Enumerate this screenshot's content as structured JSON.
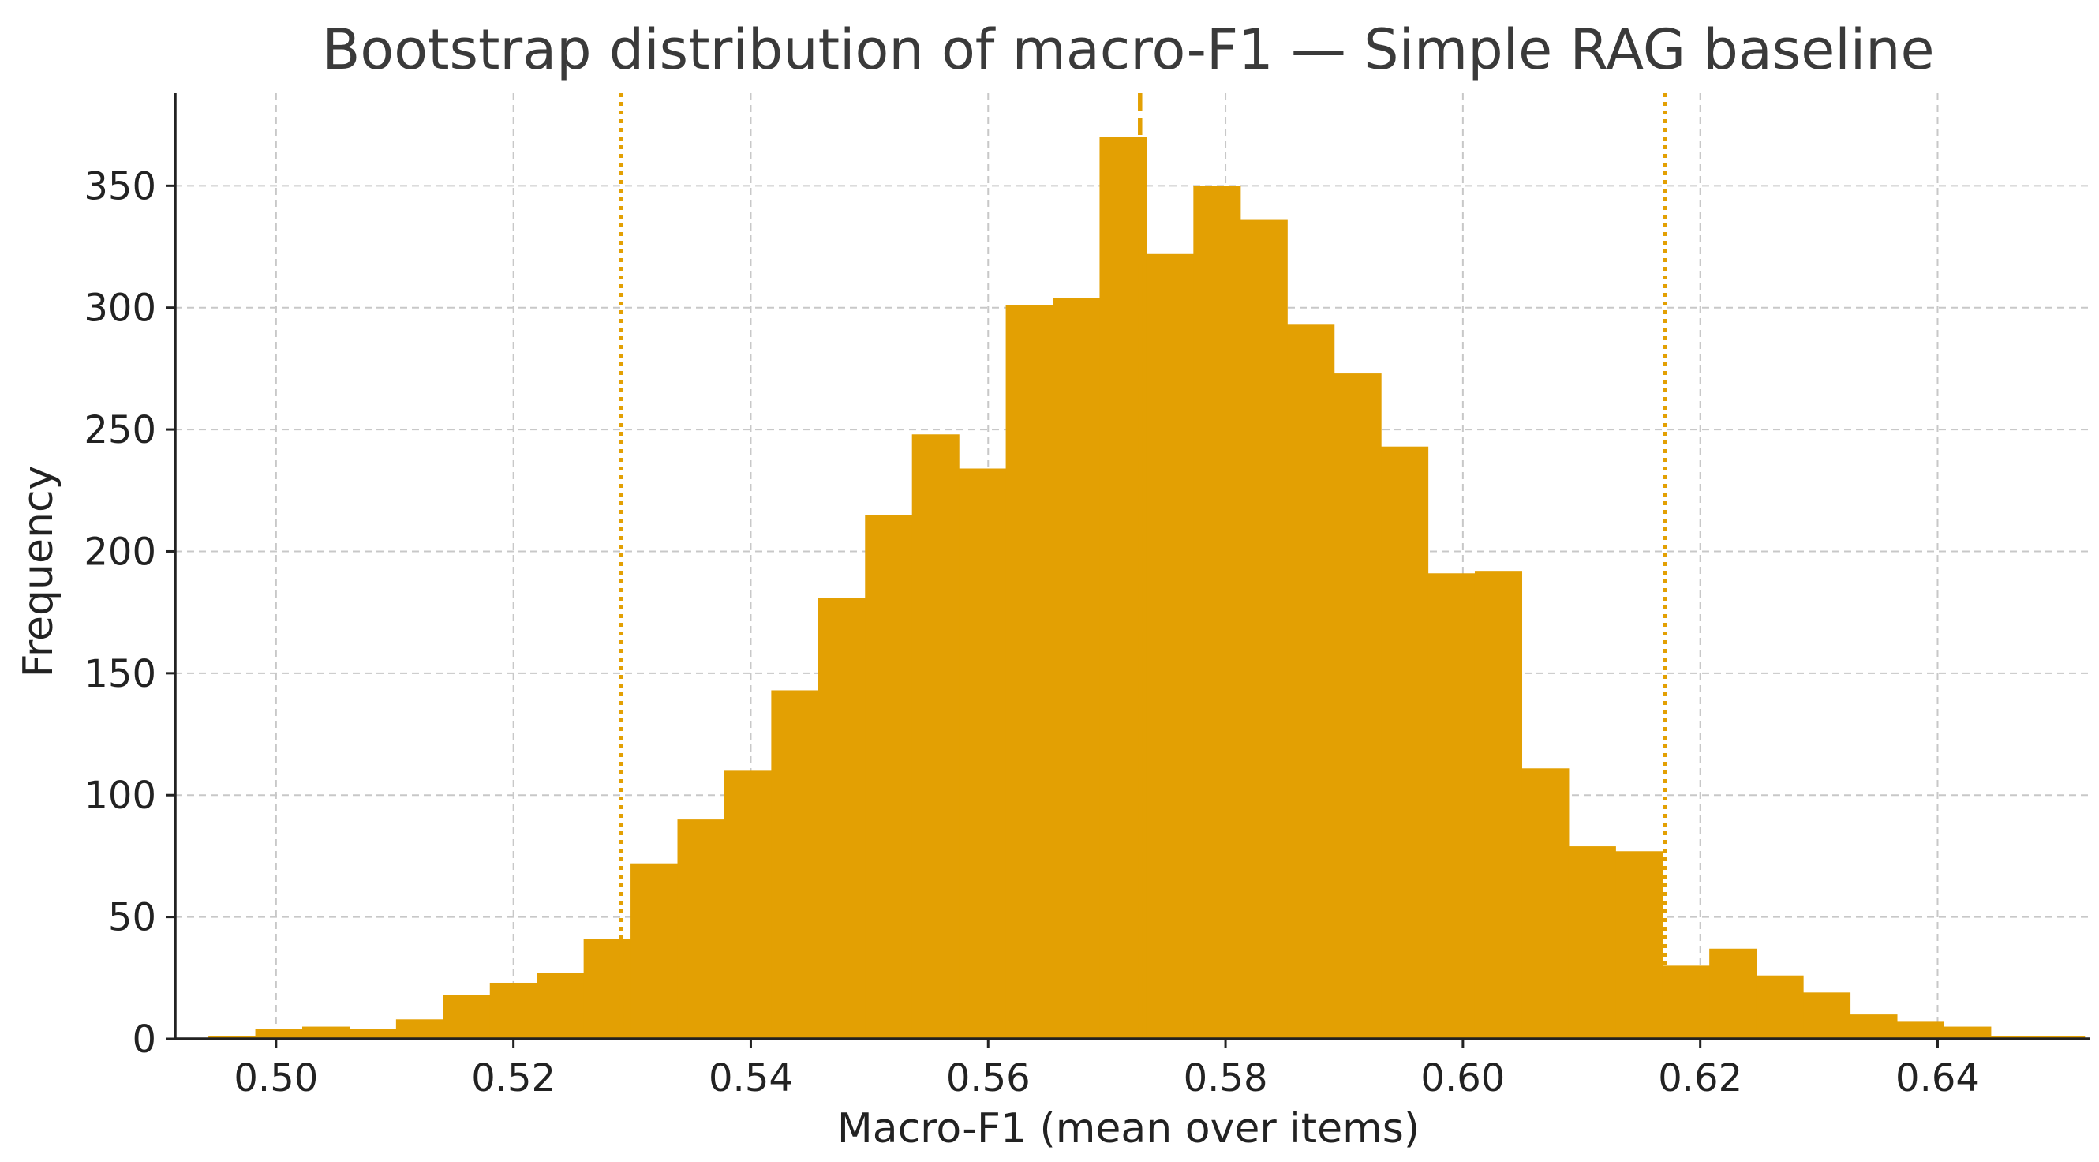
{
  "chart_data": {
    "type": "bar",
    "subtype": "histogram",
    "title": "Bootstrap distribution of macro-F1 — Simple RAG baseline",
    "xlabel": "Macro-F1 (mean over items)",
    "ylabel": "Frequency",
    "xlim": [
      0.4915,
      0.6528
    ],
    "ylim": [
      0,
      388
    ],
    "xticks": [
      0.5,
      0.52,
      0.54,
      0.56,
      0.58,
      0.6,
      0.62,
      0.64
    ],
    "xtick_labels": [
      "0.50",
      "0.52",
      "0.54",
      "0.56",
      "0.58",
      "0.60",
      "0.62",
      "0.64"
    ],
    "yticks": [
      0,
      50,
      100,
      150,
      200,
      250,
      300,
      350
    ],
    "ytick_labels": [
      "0",
      "50",
      "100",
      "150",
      "200",
      "250",
      "300",
      "350"
    ],
    "grid": true,
    "bar_color": "#E3A003",
    "bin_start": 0.4943,
    "bin_width": 0.003952,
    "values": [
      1,
      4,
      5,
      4,
      8,
      18,
      23,
      27,
      41,
      72,
      90,
      110,
      143,
      181,
      215,
      248,
      234,
      301,
      304,
      370,
      322,
      350,
      336,
      293,
      273,
      243,
      191,
      192,
      111,
      79,
      77,
      30,
      37,
      26,
      19,
      10,
      7,
      5,
      1,
      1
    ],
    "reference_lines": [
      {
        "kind": "mean",
        "x": 0.5728,
        "style": "dashed",
        "color": "#E3A003"
      },
      {
        "kind": "ci_lower",
        "x": 0.5291,
        "style": "dotted",
        "color": "#E3A003"
      },
      {
        "kind": "ci_upper",
        "x": 0.617,
        "style": "dotted",
        "color": "#E3A003"
      }
    ]
  }
}
